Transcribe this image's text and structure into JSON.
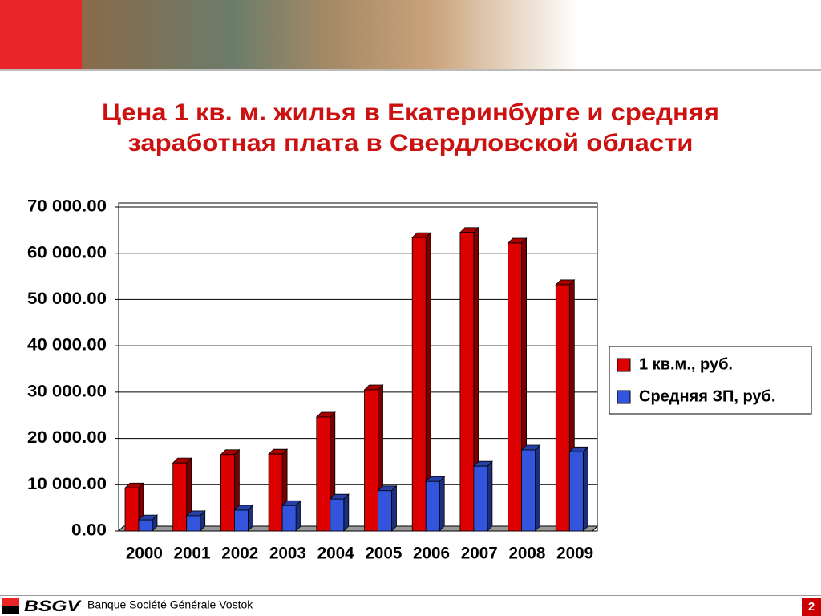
{
  "chart_data": {
    "type": "bar3d",
    "title": [
      "Цена 1 кв. м. жилья в Екатеринбурге и средняя",
      "заработная плата в Свердловской области"
    ],
    "categories": [
      "2000",
      "2001",
      "2002",
      "2003",
      "2004",
      "2005",
      "2006",
      "2007",
      "2008",
      "2009"
    ],
    "series": [
      {
        "name": "1 кв.м., руб.",
        "color": "#dd0000",
        "values": [
          9300,
          14700,
          16500,
          16600,
          24600,
          30500,
          63400,
          64500,
          62200,
          53200
        ]
      },
      {
        "name": "Средняя ЗП, руб.",
        "color": "#3355dd",
        "values": [
          2400,
          3300,
          4500,
          5500,
          6900,
          8700,
          10700,
          14000,
          17500,
          17100
        ]
      }
    ],
    "ylim": [
      0,
      70000
    ],
    "yticks": [
      {
        "value": 0,
        "label": "0.00"
      },
      {
        "value": 10000,
        "label": "10 000.00"
      },
      {
        "value": 20000,
        "label": "20 000.00"
      },
      {
        "value": 30000,
        "label": "30 000.00"
      },
      {
        "value": 40000,
        "label": "40 000.00"
      },
      {
        "value": 50000,
        "label": "50 000.00"
      },
      {
        "value": 60000,
        "label": "60 000.00"
      },
      {
        "value": 70000,
        "label": "70 000.00"
      }
    ],
    "grid": true,
    "legend": "right"
  },
  "footer": {
    "logo": "BSGV",
    "company": "Banque Société Générale Vostok",
    "page": "2"
  }
}
